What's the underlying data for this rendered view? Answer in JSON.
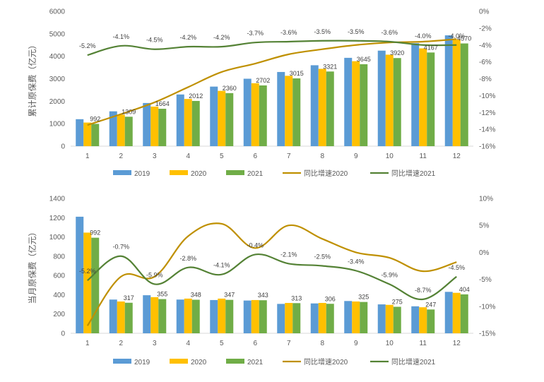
{
  "colors": {
    "s2019": "#5b9bd5",
    "s2020": "#ffc000",
    "s2021": "#70ad47",
    "line2020": "#bf9000",
    "line2021": "#548235",
    "axis": "#d9d9d9",
    "text": "#595959"
  },
  "chart_data": [
    {
      "type": "bar",
      "ylabel": "累计原保费（亿元）",
      "categories": [
        "1",
        "2",
        "3",
        "4",
        "5",
        "6",
        "7",
        "8",
        "9",
        "10",
        "11",
        "12"
      ],
      "ylim": [
        0,
        6000
      ],
      "y_ticks": [
        "0",
        "1000",
        "2000",
        "3000",
        "4000",
        "5000",
        "6000"
      ],
      "y2lim": [
        -16,
        0
      ],
      "y2_ticks": [
        "-16%",
        "-14%",
        "-12%",
        "-10%",
        "-8%",
        "-6%",
        "-4%",
        "-2%",
        "0%"
      ],
      "series": [
        {
          "name": "2019",
          "values": [
            1200,
            1550,
            1920,
            2300,
            2650,
            3000,
            3300,
            3600,
            3930,
            4250,
            4580,
            4930
          ]
        },
        {
          "name": "2020",
          "values": [
            1050,
            1400,
            1760,
            2100,
            2460,
            2800,
            3130,
            3440,
            3780,
            4070,
            4350,
            4750
          ]
        },
        {
          "name": "2021",
          "values": [
            992,
            1309,
            1664,
            2012,
            2360,
            2702,
            3015,
            3321,
            3645,
            3920,
            4167,
            4570
          ]
        }
      ],
      "line_series": [
        {
          "name": "同比增速2020",
          "values": [
            -13.5,
            -12.2,
            -10.8,
            -9.0,
            -7.2,
            -6.2,
            -5.1,
            -4.5,
            -4.0,
            -3.7,
            -3.6,
            -3.3
          ]
        },
        {
          "name": "同比增速2021",
          "values": [
            -5.2,
            -4.1,
            -4.5,
            -4.2,
            -4.2,
            -3.7,
            -3.6,
            -3.5,
            -3.5,
            -3.6,
            -4.0,
            -4.0
          ]
        }
      ],
      "bar_labels": [
        "992",
        "1309",
        "1664",
        "2012",
        "2360",
        "2702",
        "3015",
        "3321",
        "3645",
        "3920",
        "4167",
        "4570"
      ],
      "line_labels": [
        "-5.2%",
        "-4.1%",
        "-4.5%",
        "-4.2%",
        "-4.2%",
        "-3.7%",
        "-3.6%",
        "-3.5%",
        "-3.5%",
        "-3.6%",
        "-4.0%",
        "-4.0%"
      ],
      "grid": false,
      "legend": "bottom"
    },
    {
      "type": "bar",
      "ylabel": "当月原保费（亿元）",
      "categories": [
        "1",
        "2",
        "3",
        "4",
        "5",
        "6",
        "7",
        "8",
        "9",
        "10",
        "11",
        "12"
      ],
      "ylim": [
        0,
        1400
      ],
      "y_ticks": [
        "0",
        "200",
        "400",
        "600",
        "800",
        "1000",
        "1200",
        "1400"
      ],
      "y2lim": [
        -15,
        10
      ],
      "y2_ticks": [
        "-15%",
        "-10%",
        "-5%",
        "0%",
        "5%",
        "10%"
      ],
      "series": [
        {
          "name": "2019",
          "values": [
            1210,
            350,
            395,
            350,
            345,
            340,
            305,
            310,
            335,
            300,
            280,
            430
          ]
        },
        {
          "name": "2020",
          "values": [
            1045,
            330,
            375,
            360,
            360,
            345,
            315,
            315,
            330,
            295,
            270,
            420
          ]
        },
        {
          "name": "2021",
          "values": [
            992,
            317,
            355,
            348,
            347,
            343,
            313,
            306,
            325,
            275,
            247,
            404
          ]
        }
      ],
      "line_series": [
        {
          "name": "同比增速2020",
          "values": [
            -13.6,
            -4.5,
            -4.5,
            3.0,
            5.3,
            0.8,
            5.0,
            2.5,
            0.0,
            -1.0,
            -3.5,
            -1.8
          ]
        },
        {
          "name": "同比增速2021",
          "values": [
            -5.2,
            -0.7,
            -5.9,
            -2.8,
            -4.1,
            -0.4,
            -2.1,
            -2.5,
            -3.4,
            -5.9,
            -8.7,
            -4.5
          ]
        }
      ],
      "bar_labels": [
        "992",
        "317",
        "355",
        "348",
        "347",
        "343",
        "313",
        "306",
        "325",
        "275",
        "247",
        "404"
      ],
      "line_labels": [
        "-5.2%",
        "-0.7%",
        "-5.9%",
        "-2.8%",
        "-4.1%",
        "-0.4%",
        "-2.1%",
        "-2.5%",
        "-3.4%",
        "-5.9%",
        "-8.7%",
        "-4.5%"
      ],
      "grid": false,
      "legend": "bottom"
    }
  ]
}
